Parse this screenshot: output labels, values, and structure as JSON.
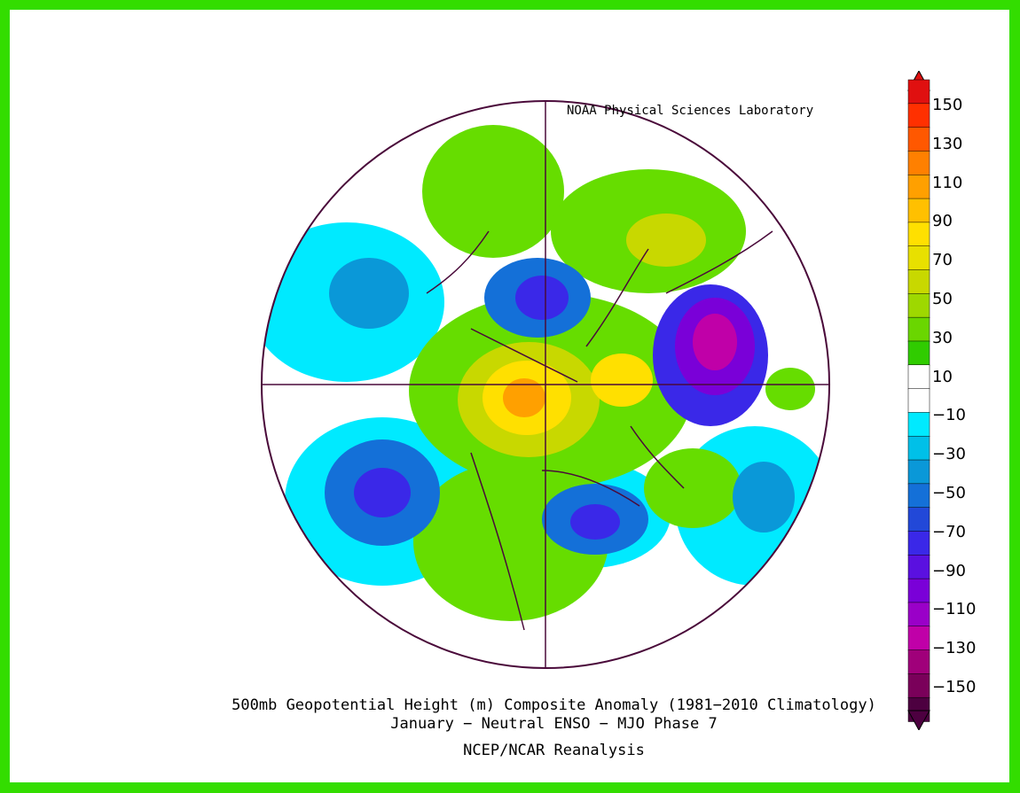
{
  "credit": "NOAA Physical Sciences Laboratory",
  "title": "500mb Geopotential Height (m) Composite Anomaly (1981−2010 Climatology)",
  "subtitle": "January − Neutral ENSO − MJO Phase 7",
  "source": "NCEP/NCAR Reanalysis",
  "colorbar": {
    "labels": [
      "150",
      "130",
      "110",
      "90",
      "70",
      "50",
      "30",
      "10",
      "−10",
      "−30",
      "−50",
      "−70",
      "−90",
      "−110",
      "−130",
      "−150"
    ],
    "colors": [
      "#4d0040",
      "#7a005a",
      "#a0007a",
      "#c000a8",
      "#9a00c8",
      "#7a00d8",
      "#5a10e0",
      "#3a28e8",
      "#2248d8",
      "#1470d8",
      "#0a98d8",
      "#00c0e8",
      "#00eaff",
      "#ffffff",
      "#ffffff",
      "#30cc00",
      "#6ad600",
      "#9ed800",
      "#c8d800",
      "#e8e000",
      "#ffe000",
      "#ffc000",
      "#ffa000",
      "#ff8000",
      "#ff5800",
      "#ff3000",
      "#e01010"
    ]
  },
  "colors": {
    "frame": "#33dd00",
    "coast": "#4a0a3a",
    "positive": "#66dd00",
    "negative": "#00eaff"
  }
}
